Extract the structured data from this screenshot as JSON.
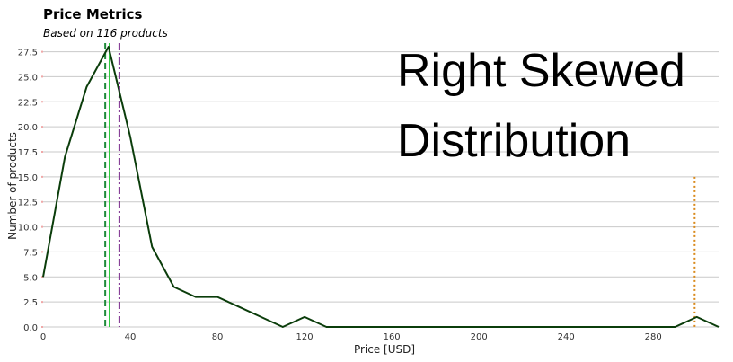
{
  "chart_data": {
    "type": "line",
    "title": "Price Metrics",
    "subtitle": "Based on 116 products",
    "xlabel": "Price [USD]",
    "ylabel": "Number of products",
    "xlim": [
      0,
      310
    ],
    "ylim": [
      0,
      28
    ],
    "x_ticks": [
      0,
      40,
      80,
      120,
      160,
      200,
      240,
      280
    ],
    "y_ticks": [
      0,
      2.5,
      5,
      7.5,
      10,
      12.5,
      15,
      17.5,
      20,
      22.5,
      25,
      27.5
    ],
    "x_tick_labels": [
      "0",
      "40",
      "80",
      "120",
      "160",
      "200",
      "240",
      "280"
    ],
    "y_tick_labels": [
      "0.0",
      "2.5",
      "5.0",
      "7.5",
      "10.0",
      "12.5",
      "15.0",
      "17.5",
      "20.0",
      "22.5",
      "25.0",
      "27.5"
    ],
    "grid": "horizontal",
    "series": [
      {
        "color": "#0b3d0b",
        "x": [
          0,
          10,
          20,
          30,
          40,
          50,
          60,
          70,
          80,
          90,
          100,
          110,
          120,
          130,
          140,
          150,
          160,
          170,
          180,
          190,
          200,
          210,
          220,
          230,
          240,
          250,
          260,
          270,
          280,
          290,
          300,
          310
        ],
        "y": [
          5,
          17,
          24,
          28,
          19,
          8,
          4,
          3,
          3,
          2,
          1,
          0,
          1,
          0,
          0,
          0,
          0,
          0,
          0,
          0,
          0,
          0,
          0,
          0,
          0,
          0,
          0,
          0,
          0,
          0,
          1,
          0
        ]
      }
    ],
    "reference_lines": [
      {
        "x": 28.5,
        "style": "dashed",
        "color": "#1f8a3a"
      },
      {
        "x": 30.5,
        "style": "solid",
        "color": "#2ecc40"
      },
      {
        "x": 35,
        "style": "dashdot",
        "color": "#7b2d8e"
      },
      {
        "x": 299,
        "style": "dotted",
        "color": "#d98a1c",
        "ymax": 15
      }
    ],
    "annotations": [
      "Right Skewed",
      "Distribution"
    ]
  }
}
